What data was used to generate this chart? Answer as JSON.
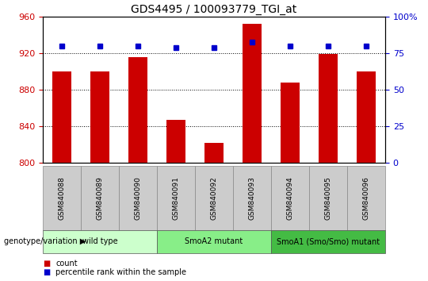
{
  "title": "GDS4495 / 100093779_TGI_at",
  "samples": [
    "GSM840088",
    "GSM840089",
    "GSM840090",
    "GSM840091",
    "GSM840092",
    "GSM840093",
    "GSM840094",
    "GSM840095",
    "GSM840096"
  ],
  "counts": [
    900,
    900,
    916,
    847,
    822,
    952,
    888,
    919,
    900
  ],
  "percentiles": [
    80,
    80,
    80,
    79,
    79,
    83,
    80,
    80,
    80
  ],
  "ylim_left": [
    800,
    960
  ],
  "ylim_right": [
    0,
    100
  ],
  "yticks_left": [
    800,
    840,
    880,
    920,
    960
  ],
  "yticks_right": [
    0,
    25,
    50,
    75,
    100
  ],
  "bar_color": "#cc0000",
  "dot_color": "#0000cc",
  "bar_width": 0.5,
  "groups": [
    {
      "label": "wild type",
      "indices": [
        0,
        1,
        2
      ],
      "color": "#ccffcc"
    },
    {
      "label": "SmoA2 mutant",
      "indices": [
        3,
        4,
        5
      ],
      "color": "#88ee88"
    },
    {
      "label": "SmoA1 (Smo/Smo) mutant",
      "indices": [
        6,
        7,
        8
      ],
      "color": "#44bb44"
    }
  ],
  "legend_items": [
    {
      "label": "count",
      "color": "#cc0000"
    },
    {
      "label": "percentile rank within the sample",
      "color": "#0000cc"
    }
  ],
  "bg_color": "#ffffff",
  "tick_color_left": "#cc0000",
  "tick_color_right": "#0000cc",
  "grid_color": "#000000",
  "sample_box_color": "#cccccc",
  "genotype_label": "genotype/variation"
}
